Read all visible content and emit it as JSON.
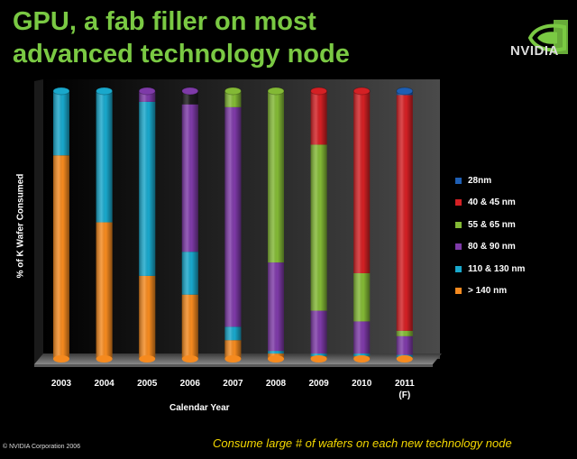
{
  "header": {
    "title": "GPU, a fab filler on most advanced technology node",
    "logo_text": "NVIDIA"
  },
  "footer": {
    "copyright": "© NVIDIA Corporation 2006",
    "caption": "Consume large # of wafers on each new technology node"
  },
  "chart_data": {
    "type": "bar",
    "stacked": true,
    "style": "3d-cylinder",
    "title": "",
    "xlabel": "Calendar Year",
    "ylabel": "% of K Wafer Consumed",
    "ylim": [
      0,
      100
    ],
    "categories": [
      "2003",
      "2004",
      "2005",
      "2006",
      "2007",
      "2008",
      "2009",
      "2010",
      "2011 (F)"
    ],
    "legend_position": "right",
    "series": [
      {
        "name": "> 140 nm",
        "color": "#f58a1f",
        "values": [
          76,
          51,
          31,
          24,
          7,
          2,
          1,
          1,
          0.5
        ]
      },
      {
        "name": "110 & 130 nm",
        "color": "#19a8cc",
        "values": [
          24,
          49,
          65,
          16,
          5,
          1,
          1,
          1,
          1
        ]
      },
      {
        "name": "80 & 90 nm",
        "color": "#7e3aa8",
        "values": [
          0,
          0,
          4,
          55,
          82,
          33,
          16,
          12,
          7
        ]
      },
      {
        "name": "55 & 65 nm",
        "color": "#83b935",
        "values": [
          0,
          0,
          0,
          0,
          6,
          64,
          62,
          18,
          2
        ]
      },
      {
        "name": "40 & 45 nm",
        "color": "#d42024",
        "values": [
          0,
          0,
          0,
          0,
          0,
          0,
          20,
          68,
          88
        ]
      },
      {
        "name": "28nm",
        "color": "#1e5fb4",
        "values": [
          0,
          0,
          0,
          0,
          0,
          0,
          0,
          0,
          1.5
        ]
      }
    ]
  }
}
